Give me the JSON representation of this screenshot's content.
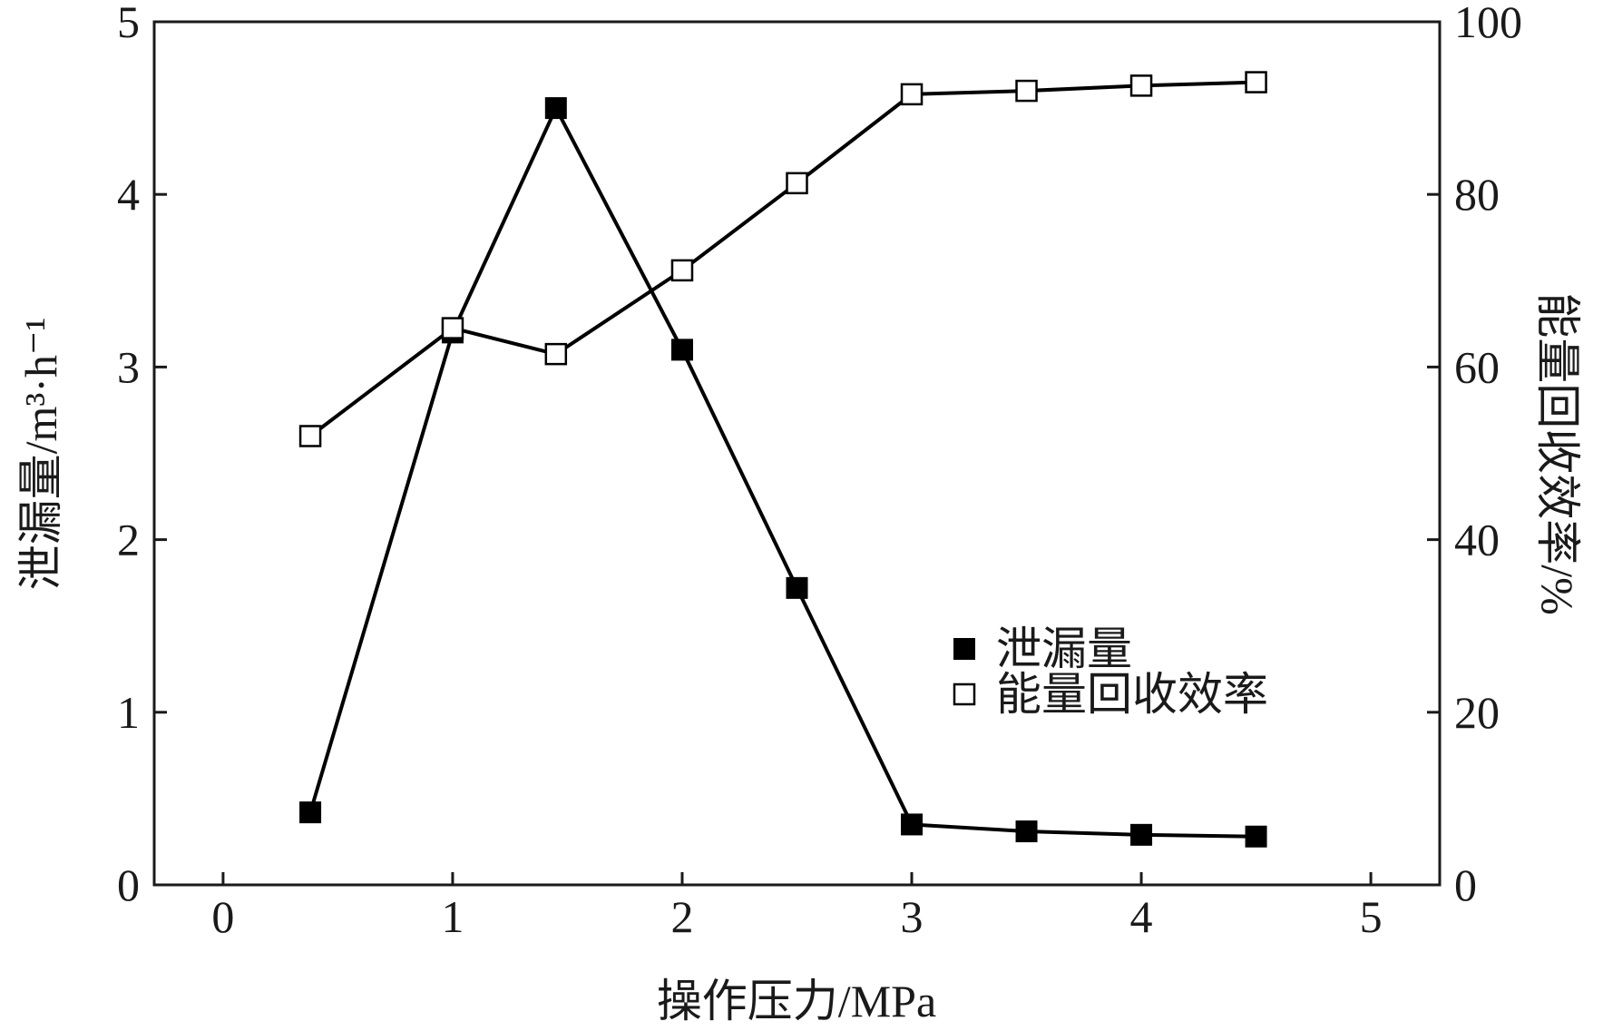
{
  "chart_data": {
    "type": "line",
    "title": "",
    "xlabel": "操作压力/MPa",
    "ylabel_left": "泄漏量/m³·h⁻¹",
    "ylabel_right": "能量回收效率/%",
    "xlim": [
      -0.3,
      5.3
    ],
    "ylim_left": [
      0,
      5
    ],
    "ylim_right": [
      0,
      100
    ],
    "x_ticks": [
      "0",
      "1",
      "2",
      "3",
      "4",
      "5"
    ],
    "y_left_ticks": [
      "0",
      "1",
      "2",
      "3",
      "4",
      "5"
    ],
    "y_right_ticks": [
      "0",
      "20",
      "40",
      "60",
      "80",
      "100"
    ],
    "grid": false,
    "legend_position": "center-right",
    "series": [
      {
        "name": "泄漏量",
        "axis": "left",
        "marker": "filled-square",
        "color": "#000000",
        "x": [
          0.38,
          1.0,
          1.45,
          2.0,
          2.5,
          3.0,
          3.5,
          4.0,
          4.5
        ],
        "y": [
          0.42,
          3.2,
          4.5,
          3.1,
          1.72,
          0.35,
          0.31,
          0.29,
          0.28
        ]
      },
      {
        "name": "能量回收效率",
        "axis": "right",
        "marker": "open-square",
        "color": "#000000",
        "x": [
          0.38,
          1.0,
          1.45,
          2.0,
          2.5,
          3.0,
          3.5,
          4.0,
          4.5
        ],
        "y": [
          52,
          64.5,
          61.5,
          71.2,
          81.3,
          91.6,
          92.0,
          92.6,
          93.0
        ]
      }
    ]
  }
}
